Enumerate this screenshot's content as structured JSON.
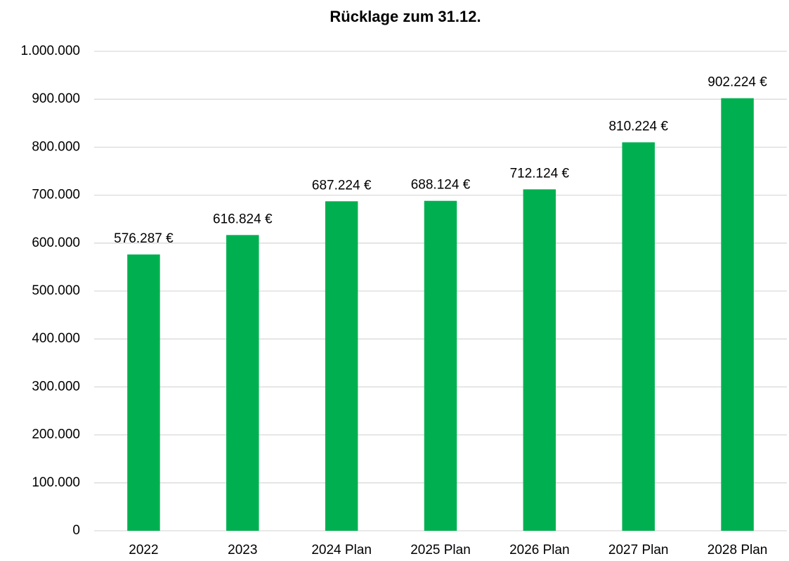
{
  "chart_data": {
    "type": "bar",
    "title": "Rücklage zum 31.12.",
    "categories": [
      "2022",
      "2023",
      "2024 Plan",
      "2025 Plan",
      "2026 Plan",
      "2027 Plan",
      "2028 Plan"
    ],
    "values": [
      576287,
      616824,
      687224,
      688124,
      712124,
      810224,
      902224
    ],
    "value_labels": [
      "576.287 €",
      "616.824 €",
      "687.224 €",
      "688.124 €",
      "712.124 €",
      "810.224 €",
      "902.224 €"
    ],
    "color": "#00b050",
    "ylim": [
      0,
      1000000
    ],
    "yticks": [
      0,
      {
        "value": 100000,
        "label": "100.000"
      },
      {
        "value": 200000,
        "label": "200.000"
      },
      {
        "value": 300000,
        "label": "300.000"
      },
      {
        "value": 400000,
        "label": "400.000"
      },
      {
        "value": 500000,
        "label": "500.000"
      },
      {
        "value": 600000,
        "label": "600.000"
      },
      {
        "value": 700000,
        "label": "700.000"
      },
      {
        "value": 800000,
        "label": "800.000"
      },
      {
        "value": 900000,
        "label": "900.000"
      },
      {
        "value": 1000000,
        "label": "1.000.000"
      }
    ],
    "grid": true
  }
}
